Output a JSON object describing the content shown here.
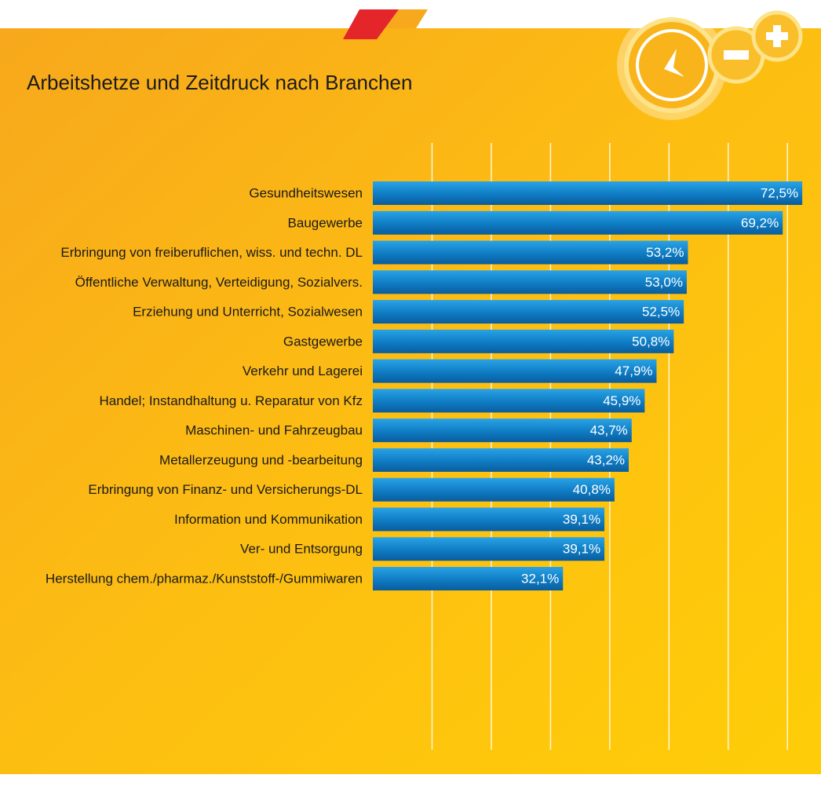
{
  "chart_data": {
    "type": "hbar",
    "title": "Arbeitshetze und Zeitdruck nach Branchen",
    "categories": [
      "Gesundheitswesen",
      "Baugewerbe",
      "Erbringung von freiberuflichen, wiss. und techn. DL",
      "Öffentliche Verwaltung, Verteidigung, Sozialvers.",
      "Erziehung und Unterricht, Sozialwesen",
      "Gastgewerbe",
      "Verkehr und Lagerei",
      "Handel; Instandhaltung u. Reparatur von Kfz",
      "Maschinen- und Fahrzeugbau",
      "Metallerzeugung und -bearbeitung",
      "Erbringung von Finanz- und Versicherungs-DL",
      "Information und Kommunikation",
      "Ver- und Entsorgung",
      "Herstellung chem./pharmaz./Kunststoff-/Gummiwaren"
    ],
    "values": [
      72.5,
      69.2,
      53.2,
      53.0,
      52.5,
      50.8,
      47.9,
      45.9,
      43.7,
      43.2,
      40.8,
      39.1,
      39.1,
      32.1
    ],
    "value_labels": [
      "72,5%",
      "69,2%",
      "53,2%",
      "53,0%",
      "52,5%",
      "50,8%",
      "47,9%",
      "45,9%",
      "43,7%",
      "43,2%",
      "40,8%",
      "39,1%",
      "39,1%",
      "32,1%"
    ],
    "color": "#0f7cc4",
    "xlim": [
      0,
      75
    ],
    "xticks": [
      10,
      20,
      30,
      40,
      50,
      60,
      70
    ],
    "grid": true
  }
}
